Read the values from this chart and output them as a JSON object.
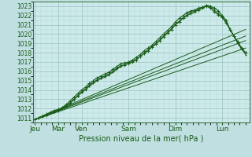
{
  "background_color": "#c0dfe0",
  "plot_bg_color": "#cceaea",
  "grid_major_color": "#9bbfbf",
  "grid_minor_color": "#b0d4d4",
  "line_color": "#1a5c1a",
  "ylabel_text": "Pression niveau de la mer( hPa )",
  "x_tick_labels": [
    "Jeu",
    "Mar",
    "Ven",
    "Sam",
    "Dim",
    "Lun"
  ],
  "x_tick_positions": [
    0,
    24,
    48,
    96,
    144,
    192
  ],
  "ylim": [
    1010.5,
    1023.5
  ],
  "xlim": [
    -2,
    220
  ],
  "yticks": [
    1011,
    1012,
    1013,
    1014,
    1015,
    1016,
    1017,
    1018,
    1019,
    1020,
    1021,
    1022,
    1023
  ],
  "straight_lines": [
    {
      "x0": 0,
      "y0": 1010.8,
      "x1": 216,
      "y1": 1018.5
    },
    {
      "x0": 0,
      "y0": 1010.8,
      "x1": 216,
      "y1": 1019.3
    },
    {
      "x0": 0,
      "y0": 1010.8,
      "x1": 216,
      "y1": 1019.8
    },
    {
      "x0": 0,
      "y0": 1010.8,
      "x1": 216,
      "y1": 1020.5
    }
  ],
  "main_series_1": {
    "x": [
      0,
      4,
      8,
      12,
      16,
      20,
      24,
      28,
      32,
      36,
      40,
      44,
      48,
      52,
      56,
      60,
      64,
      68,
      72,
      76,
      80,
      84,
      88,
      92,
      96,
      100,
      104,
      108,
      112,
      116,
      120,
      124,
      128,
      132,
      136,
      140,
      144,
      148,
      152,
      156,
      160,
      164,
      168,
      172,
      176,
      180,
      184,
      188,
      192,
      196,
      200,
      204,
      208,
      212,
      216
    ],
    "y": [
      1010.8,
      1011.0,
      1011.2,
      1011.4,
      1011.6,
      1011.8,
      1011.9,
      1012.1,
      1012.4,
      1012.8,
      1013.2,
      1013.6,
      1014.0,
      1014.3,
      1014.7,
      1015.0,
      1015.3,
      1015.5,
      1015.7,
      1015.9,
      1016.2,
      1016.5,
      1016.8,
      1016.9,
      1017.0,
      1017.2,
      1017.5,
      1017.8,
      1018.2,
      1018.5,
      1018.8,
      1019.2,
      1019.6,
      1020.0,
      1020.4,
      1020.8,
      1021.3,
      1021.7,
      1022.0,
      1022.3,
      1022.5,
      1022.6,
      1022.8,
      1022.9,
      1023.1,
      1023.0,
      1022.8,
      1022.5,
      1022.0,
      1021.5,
      1020.5,
      1019.8,
      1019.2,
      1018.5,
      1018.0
    ]
  },
  "main_series_2": {
    "x": [
      0,
      4,
      8,
      12,
      16,
      20,
      24,
      28,
      32,
      36,
      40,
      44,
      48,
      52,
      56,
      60,
      64,
      68,
      72,
      76,
      80,
      84,
      88,
      92,
      96,
      100,
      104,
      108,
      112,
      116,
      120,
      124,
      128,
      132,
      136,
      140,
      144,
      148,
      152,
      156,
      160,
      164,
      168,
      172,
      176,
      180,
      184,
      188,
      192,
      196,
      200,
      204,
      208,
      212,
      216
    ],
    "y": [
      1010.8,
      1011.0,
      1011.2,
      1011.3,
      1011.5,
      1011.7,
      1011.8,
      1012.0,
      1012.3,
      1012.6,
      1013.0,
      1013.4,
      1013.8,
      1014.1,
      1014.5,
      1014.8,
      1015.1,
      1015.3,
      1015.5,
      1015.7,
      1016.0,
      1016.3,
      1016.6,
      1016.7,
      1016.8,
      1017.0,
      1017.2,
      1017.6,
      1017.9,
      1018.2,
      1018.6,
      1018.9,
      1019.3,
      1019.7,
      1020.1,
      1020.5,
      1021.0,
      1021.3,
      1021.7,
      1022.0,
      1022.2,
      1022.4,
      1022.6,
      1022.8,
      1023.0,
      1022.8,
      1022.4,
      1022.1,
      1021.8,
      1021.2,
      1020.5,
      1019.8,
      1019.0,
      1018.4,
      1018.0
    ]
  },
  "main_series_3": {
    "x": [
      0,
      4,
      8,
      12,
      16,
      20,
      24,
      28,
      32,
      36,
      40,
      44,
      48,
      52,
      56,
      60,
      64,
      68,
      72,
      76,
      80,
      84,
      88,
      92,
      96,
      100,
      104,
      108,
      112,
      116,
      120,
      124,
      128,
      132,
      136,
      140,
      144,
      148,
      152,
      156,
      160,
      164,
      168,
      172,
      176,
      180,
      184,
      188,
      192,
      196,
      200,
      204,
      208,
      212,
      216
    ],
    "y": [
      1010.8,
      1011.0,
      1011.1,
      1011.3,
      1011.5,
      1011.6,
      1011.8,
      1012.0,
      1012.2,
      1012.5,
      1012.9,
      1013.3,
      1013.7,
      1014.0,
      1014.4,
      1014.7,
      1015.0,
      1015.2,
      1015.4,
      1015.6,
      1015.9,
      1016.2,
      1016.5,
      1016.7,
      1016.9,
      1017.1,
      1017.3,
      1017.6,
      1018.0,
      1018.3,
      1018.7,
      1019.0,
      1019.4,
      1019.8,
      1020.2,
      1020.6,
      1021.1,
      1021.4,
      1021.8,
      1022.1,
      1022.4,
      1022.5,
      1022.7,
      1022.9,
      1023.0,
      1022.9,
      1022.6,
      1022.2,
      1021.9,
      1021.3,
      1020.6,
      1019.8,
      1019.1,
      1018.4,
      1017.8
    ]
  }
}
